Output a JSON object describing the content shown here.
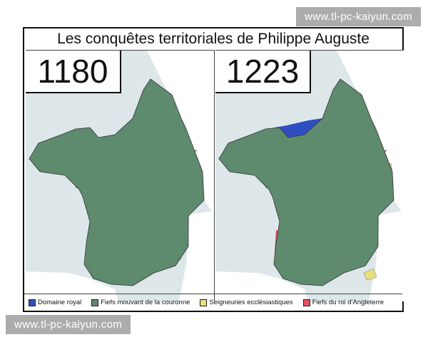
{
  "title": "Les conquêtes territoriales de Philippe Auguste",
  "maps": [
    {
      "year": "1180"
    },
    {
      "year": "1223"
    }
  ],
  "legend": [
    {
      "label": "Domaine royal",
      "color": "#2f4fc0"
    },
    {
      "label": "Fiefs mouvant de la couronne",
      "color": "#5e8a6e"
    },
    {
      "label": "Seigneuries ecclésiastiques",
      "color": "#e8e07a"
    },
    {
      "label": "Fiefs du roi d'Angleterre",
      "color": "#e2525d"
    }
  ],
  "colors": {
    "sea": "#dde7ea",
    "foreign_land": "#ffffff"
  },
  "watermarks": [
    "www.tl-pc-kaiyun.com",
    "www.tl-pc-kaiyun.com"
  ]
}
